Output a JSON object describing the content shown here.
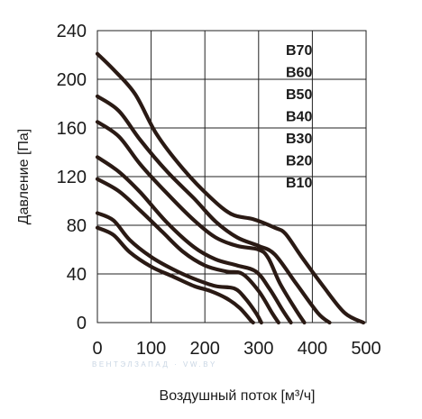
{
  "chart_data": {
    "type": "line",
    "title": "",
    "xlabel": "Воздушный поток [м³/ч]",
    "ylabel": "Давление [Па]",
    "xlim": [
      0,
      500
    ],
    "ylim": [
      0,
      240
    ],
    "x_ticks": [
      "0",
      "100",
      "200",
      "300",
      "400",
      "500"
    ],
    "y_ticks": [
      "240",
      "200",
      "160",
      "120",
      "80",
      "40",
      "0"
    ],
    "grid": true,
    "legend_position": "top-right",
    "watermark": "ВЕНТЭЛЗАПАД · VW.BY",
    "series": [
      {
        "name": "B70",
        "points": [
          [
            0,
            221
          ],
          [
            30,
            208
          ],
          [
            70,
            188
          ],
          [
            110,
            155
          ],
          [
            160,
            126
          ],
          [
            210,
            103
          ],
          [
            250,
            89
          ],
          [
            290,
            85
          ],
          [
            330,
            78
          ],
          [
            350,
            73
          ],
          [
            380,
            54
          ],
          [
            420,
            30
          ],
          [
            460,
            8
          ],
          [
            495,
            0
          ]
        ]
      },
      {
        "name": "B60",
        "points": [
          [
            0,
            186
          ],
          [
            40,
            174
          ],
          [
            80,
            150
          ],
          [
            130,
            124
          ],
          [
            180,
            102
          ],
          [
            220,
            83
          ],
          [
            260,
            70
          ],
          [
            300,
            63
          ],
          [
            330,
            56
          ],
          [
            370,
            32
          ],
          [
            410,
            8
          ],
          [
            432,
            0
          ]
        ]
      },
      {
        "name": "B50",
        "points": [
          [
            0,
            165
          ],
          [
            40,
            153
          ],
          [
            80,
            130
          ],
          [
            130,
            106
          ],
          [
            180,
            84
          ],
          [
            220,
            70
          ],
          [
            260,
            63
          ],
          [
            300,
            60
          ],
          [
            318,
            53
          ],
          [
            340,
            32
          ],
          [
            370,
            10
          ],
          [
            385,
            0
          ]
        ]
      },
      {
        "name": "B40",
        "points": [
          [
            0,
            136
          ],
          [
            40,
            124
          ],
          [
            80,
            107
          ],
          [
            130,
            82
          ],
          [
            180,
            62
          ],
          [
            220,
            52
          ],
          [
            260,
            47
          ],
          [
            295,
            42
          ],
          [
            320,
            28
          ],
          [
            345,
            10
          ],
          [
            360,
            0
          ]
        ]
      },
      {
        "name": "B30",
        "points": [
          [
            0,
            118
          ],
          [
            40,
            108
          ],
          [
            80,
            92
          ],
          [
            120,
            75
          ],
          [
            160,
            58
          ],
          [
            200,
            47
          ],
          [
            240,
            42
          ],
          [
            270,
            40
          ],
          [
            300,
            26
          ],
          [
            325,
            8
          ],
          [
            337,
            0
          ]
        ]
      },
      {
        "name": "B20",
        "points": [
          [
            0,
            90
          ],
          [
            30,
            84
          ],
          [
            60,
            68
          ],
          [
            100,
            54
          ],
          [
            140,
            44
          ],
          [
            180,
            36
          ],
          [
            220,
            30
          ],
          [
            255,
            28
          ],
          [
            275,
            20
          ],
          [
            295,
            8
          ],
          [
            305,
            0
          ]
        ]
      },
      {
        "name": "B10",
        "points": [
          [
            0,
            78
          ],
          [
            30,
            72
          ],
          [
            60,
            58
          ],
          [
            100,
            46
          ],
          [
            140,
            38
          ],
          [
            180,
            30
          ],
          [
            210,
            26
          ],
          [
            240,
            20
          ],
          [
            265,
            12
          ],
          [
            285,
            2
          ],
          [
            290,
            0
          ]
        ]
      }
    ]
  }
}
